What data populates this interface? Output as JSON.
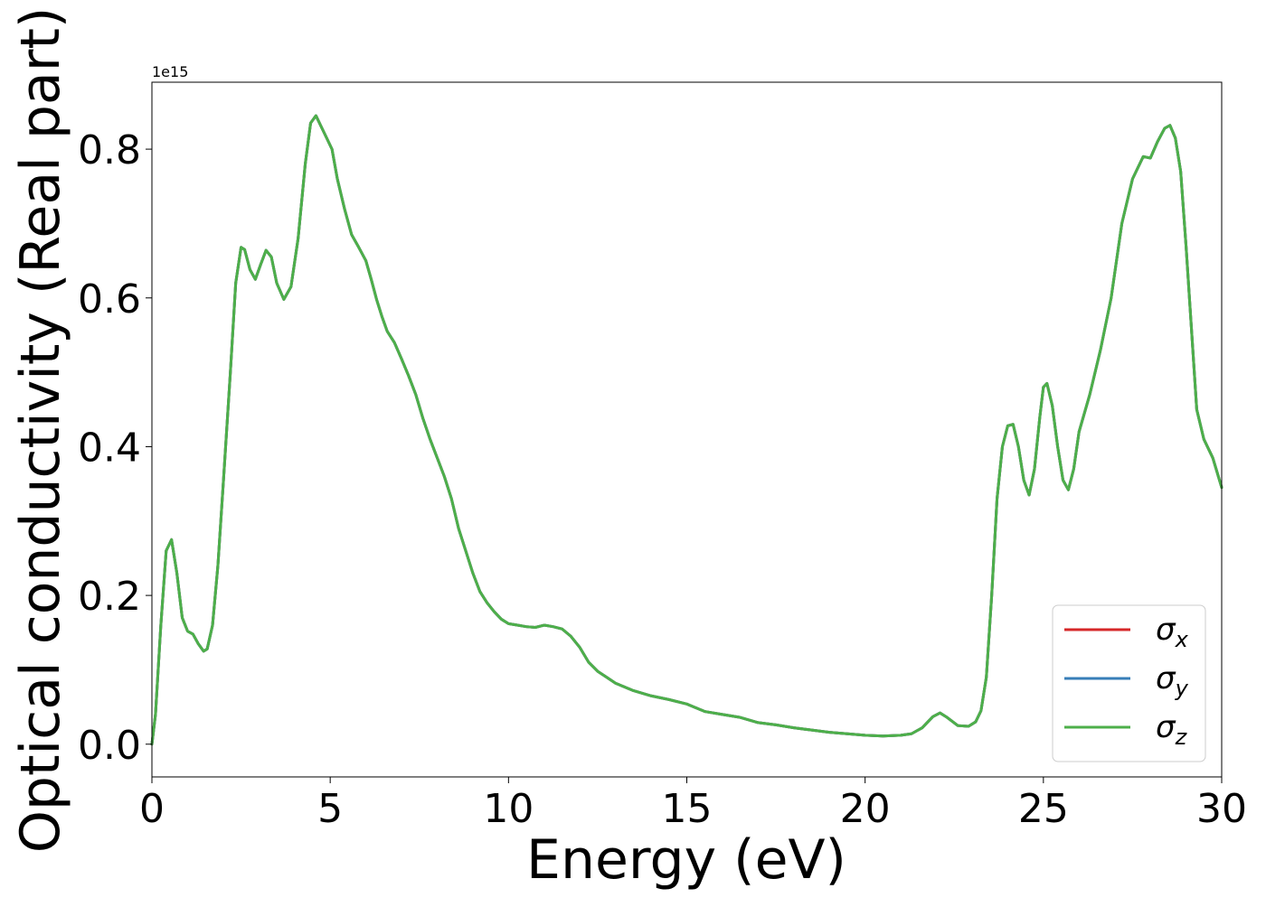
{
  "chart_data": {
    "type": "line",
    "title": "",
    "xlabel": "Energy (eV)",
    "ylabel": "Optical conductivity (Real part)",
    "y_offset_label": "1e15",
    "xlim": [
      0,
      30
    ],
    "ylim": [
      -0.044,
      0.89
    ],
    "y_scale_factor": 1000000000000000.0,
    "x_ticks": [
      0,
      5,
      10,
      15,
      20,
      25,
      30
    ],
    "x_tick_labels": [
      "0",
      "5",
      "10",
      "15",
      "20",
      "25",
      "30"
    ],
    "y_ticks": [
      0.0,
      0.2,
      0.4,
      0.6,
      0.8
    ],
    "y_tick_labels": [
      "0.0",
      "0.2",
      "0.4",
      "0.6",
      "0.8"
    ],
    "grid": false,
    "legend_position": "lower-right",
    "x": [
      0,
      0.1,
      0.25,
      0.4,
      0.55,
      0.7,
      0.85,
      1.0,
      1.15,
      1.3,
      1.45,
      1.55,
      1.7,
      1.85,
      2.0,
      2.2,
      2.35,
      2.5,
      2.6,
      2.75,
      2.9,
      3.05,
      3.2,
      3.35,
      3.5,
      3.7,
      3.9,
      4.1,
      4.3,
      4.45,
      4.6,
      4.75,
      4.9,
      5.05,
      5.2,
      5.4,
      5.6,
      5.8,
      6.0,
      6.15,
      6.3,
      6.45,
      6.6,
      6.8,
      7.0,
      7.2,
      7.4,
      7.6,
      7.8,
      8.0,
      8.2,
      8.4,
      8.6,
      8.8,
      9.0,
      9.2,
      9.4,
      9.6,
      9.8,
      10.0,
      10.25,
      10.5,
      10.75,
      11.0,
      11.25,
      11.5,
      11.75,
      12.0,
      12.25,
      12.5,
      12.75,
      13.0,
      13.5,
      14.0,
      14.5,
      15.0,
      15.5,
      16.0,
      16.5,
      17.0,
      17.5,
      18.0,
      18.5,
      19.0,
      19.5,
      20.0,
      20.5,
      21.0,
      21.3,
      21.6,
      21.9,
      22.1,
      22.3,
      22.6,
      22.9,
      23.1,
      23.25,
      23.4,
      23.55,
      23.7,
      23.85,
      24.0,
      24.15,
      24.3,
      24.45,
      24.6,
      24.75,
      24.9,
      25.0,
      25.1,
      25.25,
      25.4,
      25.55,
      25.7,
      25.85,
      26.0,
      26.3,
      26.6,
      26.9,
      27.2,
      27.5,
      27.8,
      28.0,
      28.2,
      28.4,
      28.55,
      28.7,
      28.85,
      29.0,
      29.15,
      29.3,
      29.5,
      29.75,
      30.0
    ],
    "series": [
      {
        "name": "σx",
        "legend_symbol": "σ",
        "legend_subscript": "x",
        "color": "#d62728",
        "values": [
          0.0,
          0.04,
          0.16,
          0.26,
          0.275,
          0.23,
          0.17,
          0.152,
          0.148,
          0.135,
          0.125,
          0.128,
          0.16,
          0.24,
          0.35,
          0.5,
          0.62,
          0.668,
          0.665,
          0.638,
          0.625,
          0.645,
          0.664,
          0.655,
          0.62,
          0.598,
          0.615,
          0.68,
          0.78,
          0.835,
          0.845,
          0.83,
          0.815,
          0.8,
          0.76,
          0.72,
          0.685,
          0.668,
          0.65,
          0.625,
          0.598,
          0.575,
          0.555,
          0.54,
          0.518,
          0.495,
          0.47,
          0.438,
          0.41,
          0.385,
          0.36,
          0.33,
          0.29,
          0.26,
          0.23,
          0.205,
          0.19,
          0.178,
          0.168,
          0.162,
          0.16,
          0.158,
          0.157,
          0.16,
          0.158,
          0.155,
          0.145,
          0.13,
          0.11,
          0.098,
          0.09,
          0.082,
          0.072,
          0.065,
          0.06,
          0.054,
          0.044,
          0.04,
          0.036,
          0.029,
          0.026,
          0.022,
          0.019,
          0.016,
          0.014,
          0.012,
          0.011,
          0.012,
          0.014,
          0.022,
          0.037,
          0.042,
          0.036,
          0.025,
          0.024,
          0.03,
          0.045,
          0.09,
          0.2,
          0.33,
          0.4,
          0.428,
          0.43,
          0.4,
          0.355,
          0.335,
          0.37,
          0.44,
          0.48,
          0.485,
          0.455,
          0.4,
          0.355,
          0.342,
          0.37,
          0.42,
          0.47,
          0.53,
          0.6,
          0.7,
          0.76,
          0.79,
          0.788,
          0.81,
          0.828,
          0.832,
          0.815,
          0.77,
          0.67,
          0.56,
          0.45,
          0.41,
          0.385,
          0.345
        ]
      },
      {
        "name": "σy",
        "legend_symbol": "σ",
        "legend_subscript": "y",
        "color": "#377eb8",
        "values": [
          0.0,
          0.04,
          0.16,
          0.26,
          0.275,
          0.23,
          0.17,
          0.152,
          0.148,
          0.135,
          0.125,
          0.128,
          0.16,
          0.24,
          0.35,
          0.5,
          0.62,
          0.668,
          0.665,
          0.638,
          0.625,
          0.645,
          0.664,
          0.655,
          0.62,
          0.598,
          0.615,
          0.68,
          0.78,
          0.835,
          0.845,
          0.83,
          0.815,
          0.8,
          0.76,
          0.72,
          0.685,
          0.668,
          0.65,
          0.625,
          0.598,
          0.575,
          0.555,
          0.54,
          0.518,
          0.495,
          0.47,
          0.438,
          0.41,
          0.385,
          0.36,
          0.33,
          0.29,
          0.26,
          0.23,
          0.205,
          0.19,
          0.178,
          0.168,
          0.162,
          0.16,
          0.158,
          0.157,
          0.16,
          0.158,
          0.155,
          0.145,
          0.13,
          0.11,
          0.098,
          0.09,
          0.082,
          0.072,
          0.065,
          0.06,
          0.054,
          0.044,
          0.04,
          0.036,
          0.029,
          0.026,
          0.022,
          0.019,
          0.016,
          0.014,
          0.012,
          0.011,
          0.012,
          0.014,
          0.022,
          0.037,
          0.042,
          0.036,
          0.025,
          0.024,
          0.03,
          0.045,
          0.09,
          0.2,
          0.33,
          0.4,
          0.428,
          0.43,
          0.4,
          0.355,
          0.335,
          0.37,
          0.44,
          0.48,
          0.485,
          0.455,
          0.4,
          0.355,
          0.342,
          0.37,
          0.42,
          0.47,
          0.53,
          0.6,
          0.7,
          0.76,
          0.79,
          0.788,
          0.81,
          0.828,
          0.832,
          0.815,
          0.77,
          0.67,
          0.56,
          0.45,
          0.41,
          0.385,
          0.345
        ]
      },
      {
        "name": "σz",
        "legend_symbol": "σ",
        "legend_subscript": "z",
        "color": "#4daf4a",
        "values": [
          0.0,
          0.04,
          0.16,
          0.26,
          0.275,
          0.23,
          0.17,
          0.152,
          0.148,
          0.135,
          0.125,
          0.128,
          0.16,
          0.24,
          0.35,
          0.5,
          0.62,
          0.668,
          0.665,
          0.638,
          0.625,
          0.645,
          0.664,
          0.655,
          0.62,
          0.598,
          0.615,
          0.68,
          0.78,
          0.835,
          0.845,
          0.83,
          0.815,
          0.8,
          0.76,
          0.72,
          0.685,
          0.668,
          0.65,
          0.625,
          0.598,
          0.575,
          0.555,
          0.54,
          0.518,
          0.495,
          0.47,
          0.438,
          0.41,
          0.385,
          0.36,
          0.33,
          0.29,
          0.26,
          0.23,
          0.205,
          0.19,
          0.178,
          0.168,
          0.162,
          0.16,
          0.158,
          0.157,
          0.16,
          0.158,
          0.155,
          0.145,
          0.13,
          0.11,
          0.098,
          0.09,
          0.082,
          0.072,
          0.065,
          0.06,
          0.054,
          0.044,
          0.04,
          0.036,
          0.029,
          0.026,
          0.022,
          0.019,
          0.016,
          0.014,
          0.012,
          0.011,
          0.012,
          0.014,
          0.022,
          0.037,
          0.042,
          0.036,
          0.025,
          0.024,
          0.03,
          0.045,
          0.09,
          0.2,
          0.33,
          0.4,
          0.428,
          0.43,
          0.4,
          0.355,
          0.335,
          0.37,
          0.44,
          0.48,
          0.485,
          0.455,
          0.4,
          0.355,
          0.342,
          0.37,
          0.42,
          0.47,
          0.53,
          0.6,
          0.7,
          0.76,
          0.79,
          0.788,
          0.81,
          0.828,
          0.832,
          0.815,
          0.77,
          0.67,
          0.56,
          0.45,
          0.41,
          0.385,
          0.345
        ]
      }
    ]
  }
}
